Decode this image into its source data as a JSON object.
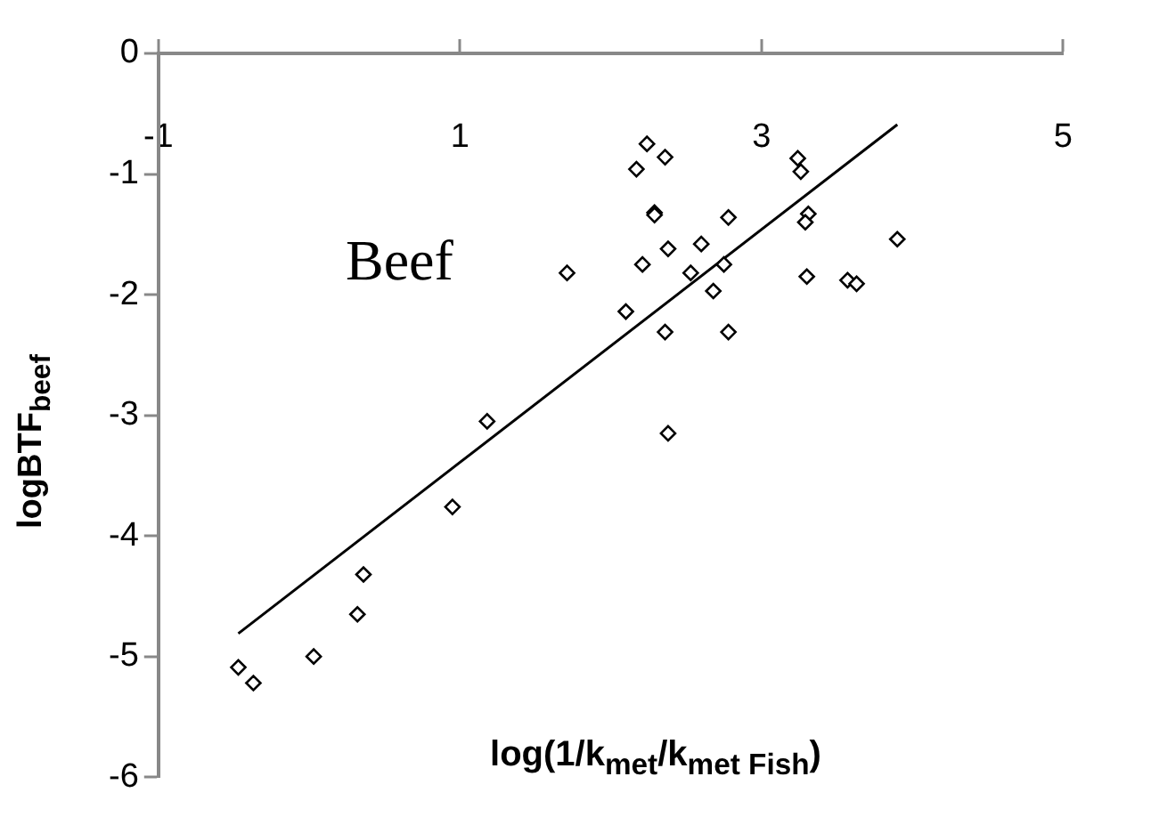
{
  "chart_data": {
    "type": "scatter",
    "xlabel": "log(1/k$_{met}$/k$_{met Fish}$)",
    "ylabel": "logBTF$_{beef}$",
    "annotations": [
      "Beef"
    ],
    "xlim": [
      -1,
      5
    ],
    "xticks": [
      -1,
      1,
      3,
      5
    ],
    "ylim": [
      -6,
      0
    ],
    "yticks": [
      -6,
      -5,
      -4,
      -3,
      -2,
      -1,
      0
    ],
    "grid": false,
    "legend": false,
    "marker": "diamond",
    "series": [
      {
        "color": "#000000",
        "x": [
          -0.47,
          -0.37,
          0.03,
          0.32,
          0.36,
          0.95,
          1.18,
          2.38,
          2.24,
          2.36,
          2.17,
          3.24,
          3.26,
          2.29,
          2.29,
          2.78,
          3.31,
          3.29,
          3.9,
          2.6,
          2.38,
          2.21,
          2.75,
          1.71,
          2.53,
          3.3,
          3.57,
          3.63,
          2.68,
          2.1,
          2.36,
          2.78
        ],
        "values": [
          -5.09,
          -5.22,
          -5.0,
          -4.65,
          -4.32,
          -3.76,
          -3.05,
          -3.15,
          -0.75,
          -0.86,
          -0.96,
          -0.87,
          -0.98,
          -1.32,
          -1.34,
          -1.36,
          -1.33,
          -1.4,
          -1.54,
          -1.58,
          -1.62,
          -1.75,
          -1.75,
          -1.82,
          -1.82,
          -1.85,
          -1.88,
          -1.91,
          -1.97,
          -2.14,
          -2.31,
          -2.31
        ]
      },
      {
        "type": "line",
        "marker": "none",
        "color": "#000000",
        "x": [
          -0.47,
          3.9
        ],
        "values": [
          -4.81,
          -0.59
        ]
      }
    ]
  }
}
